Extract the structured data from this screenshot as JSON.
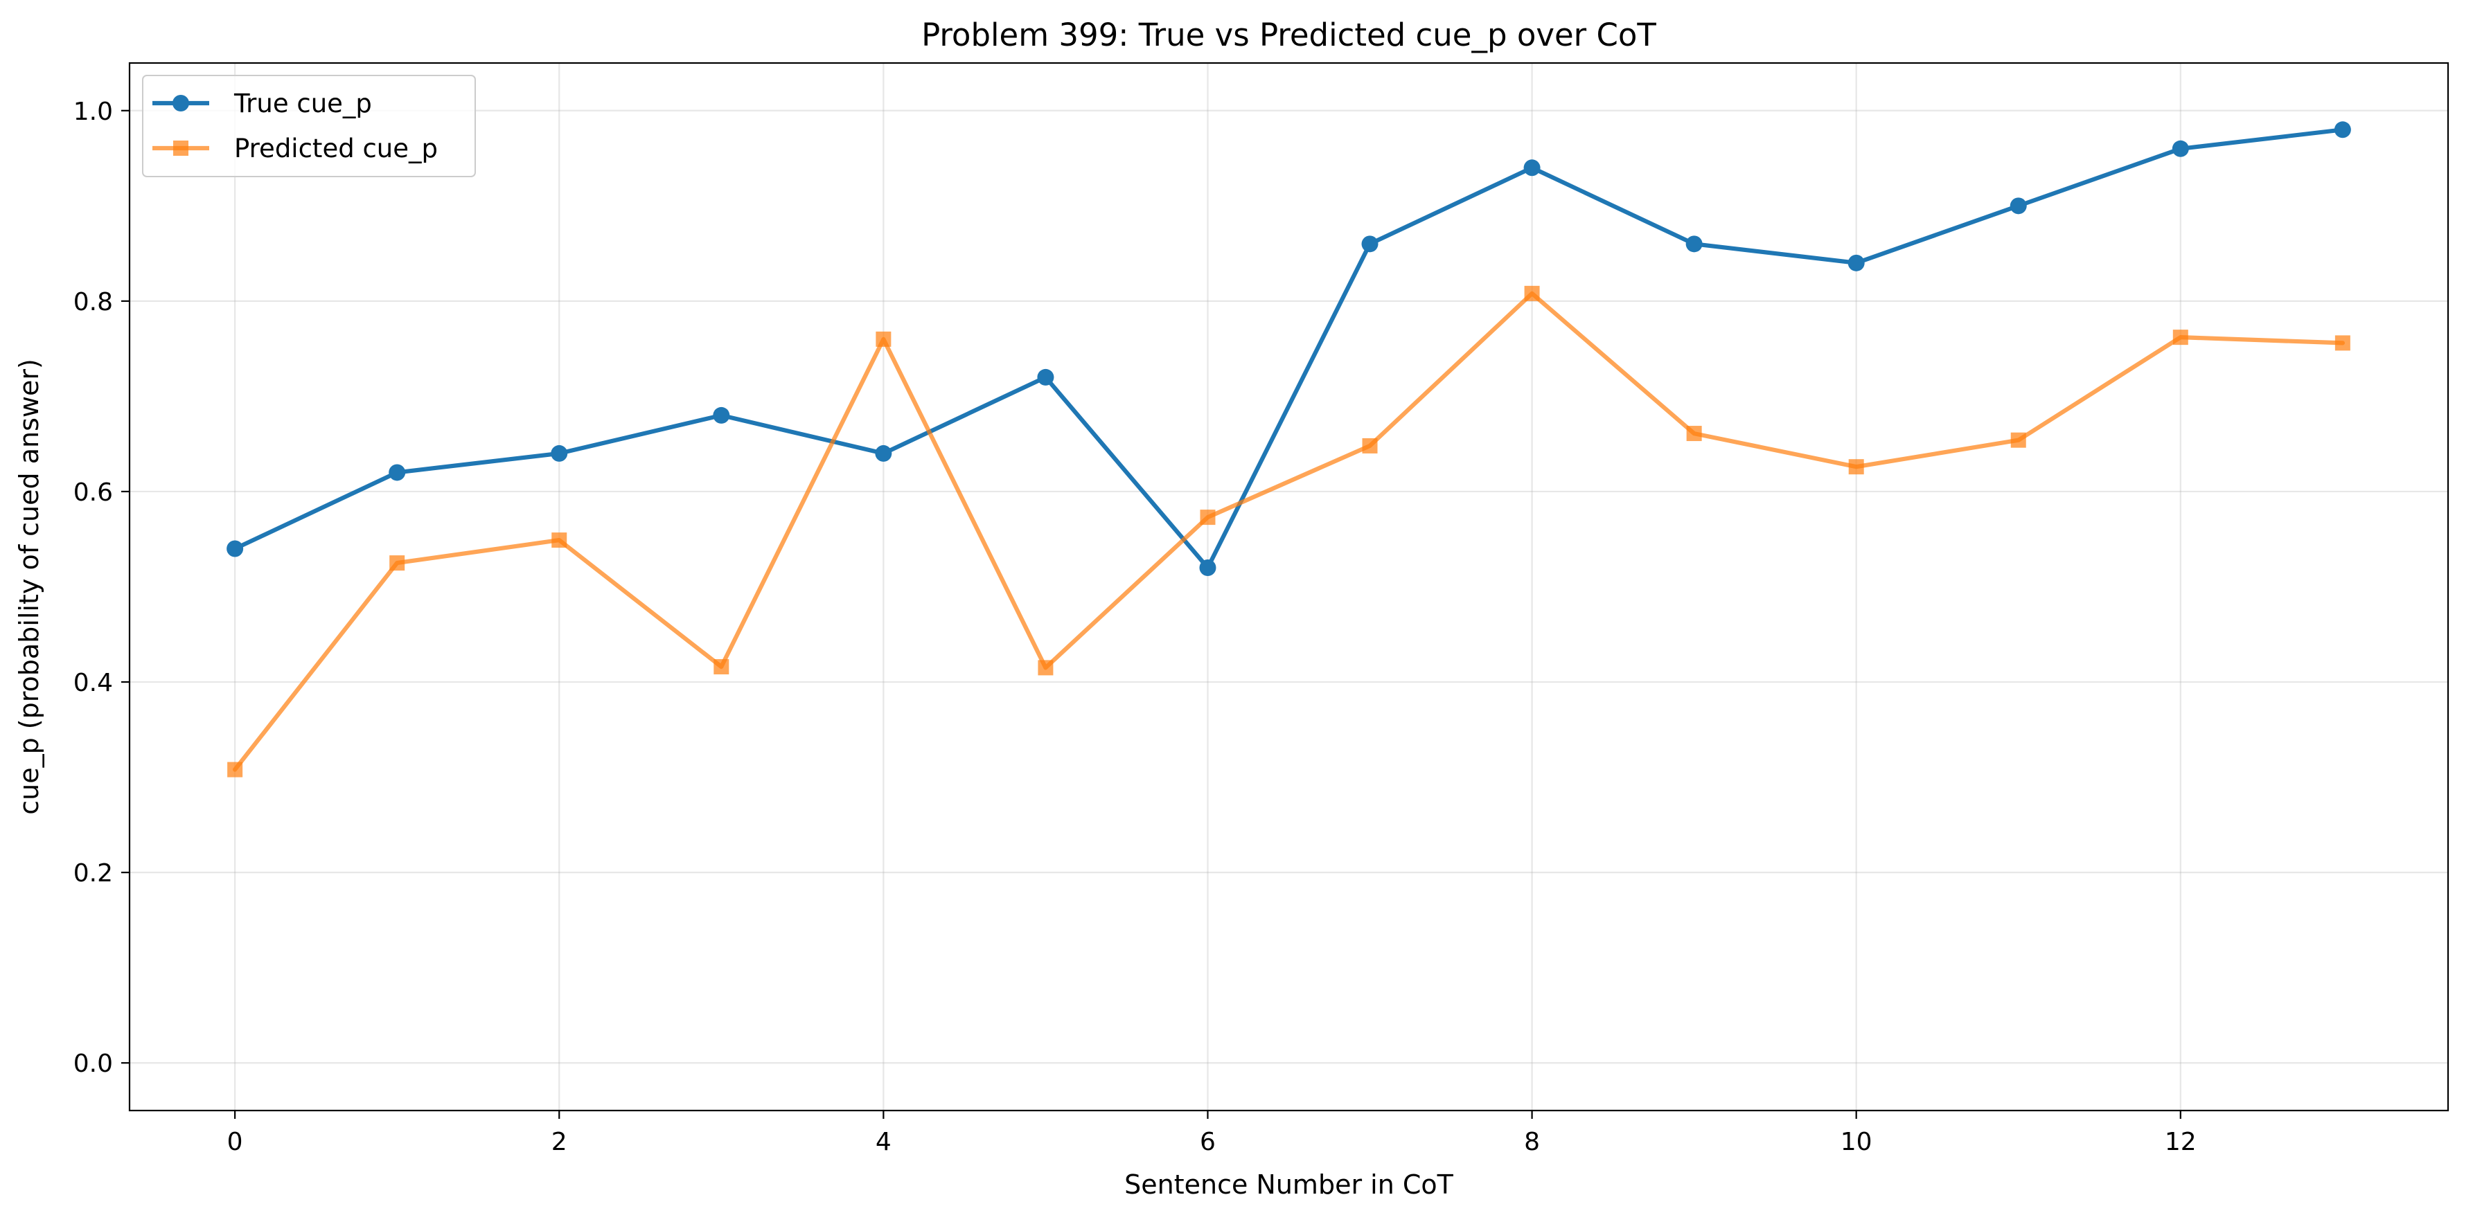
{
  "chart_data": {
    "type": "line",
    "title": "Problem 399: True vs Predicted cue_p over CoT",
    "xlabel": "Sentence Number in CoT",
    "ylabel": "cue_p (probability of cued answer)",
    "xlim": [
      -0.65,
      13.65
    ],
    "ylim": [
      -0.05,
      1.05
    ],
    "xticks": [
      0,
      2,
      4,
      6,
      8,
      10,
      12
    ],
    "xtick_labels": [
      "0",
      "2",
      "4",
      "6",
      "8",
      "10",
      "12"
    ],
    "yticks": [
      0.0,
      0.2,
      0.4,
      0.6,
      0.8,
      1.0
    ],
    "ytick_labels": [
      "0.0",
      "0.2",
      "0.4",
      "0.6",
      "0.8",
      "1.0"
    ],
    "grid": true,
    "legend_position": "top-left",
    "x": [
      0,
      1,
      2,
      3,
      4,
      5,
      6,
      7,
      8,
      9,
      10,
      11,
      12,
      13
    ],
    "series": [
      {
        "name": "True cue_p",
        "color": "#1f77b4",
        "marker": "circle",
        "values": [
          0.54,
          0.62,
          0.64,
          0.68,
          0.64,
          0.72,
          0.52,
          0.86,
          0.94,
          0.86,
          0.84,
          0.9,
          0.96,
          0.98
        ]
      },
      {
        "name": "Predicted cue_p",
        "color": "#ff7f0e",
        "marker": "square",
        "values": [
          0.308,
          0.525,
          0.549,
          0.416,
          0.76,
          0.415,
          0.573,
          0.648,
          0.808,
          0.661,
          0.626,
          0.654,
          0.762,
          0.756
        ]
      }
    ]
  }
}
